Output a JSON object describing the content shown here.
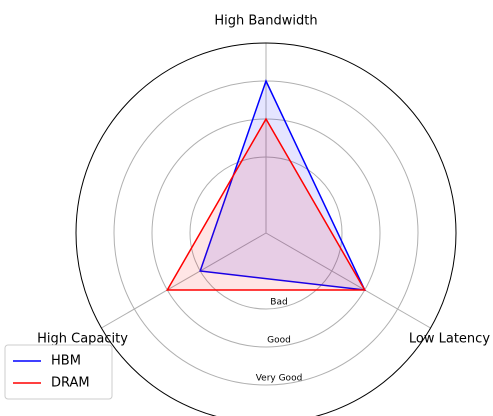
{
  "chart_data": {
    "type": "radar",
    "categories": [
      "High Bandwidth",
      "Low Latency",
      "High Capacity"
    ],
    "series": [
      {
        "name": "HBM",
        "color": "#0000ff",
        "values": [
          4,
          3,
          2
        ]
      },
      {
        "name": "DRAM",
        "color": "#ff0000",
        "values": [
          3,
          3,
          3
        ]
      }
    ],
    "ylim": [
      0,
      5
    ],
    "yticks": [
      {
        "value": 2,
        "label": "Bad"
      },
      {
        "value": 3,
        "label": "Good"
      },
      {
        "value": 4,
        "label": "Very Good"
      }
    ],
    "grid": true,
    "legend": "lower left"
  }
}
